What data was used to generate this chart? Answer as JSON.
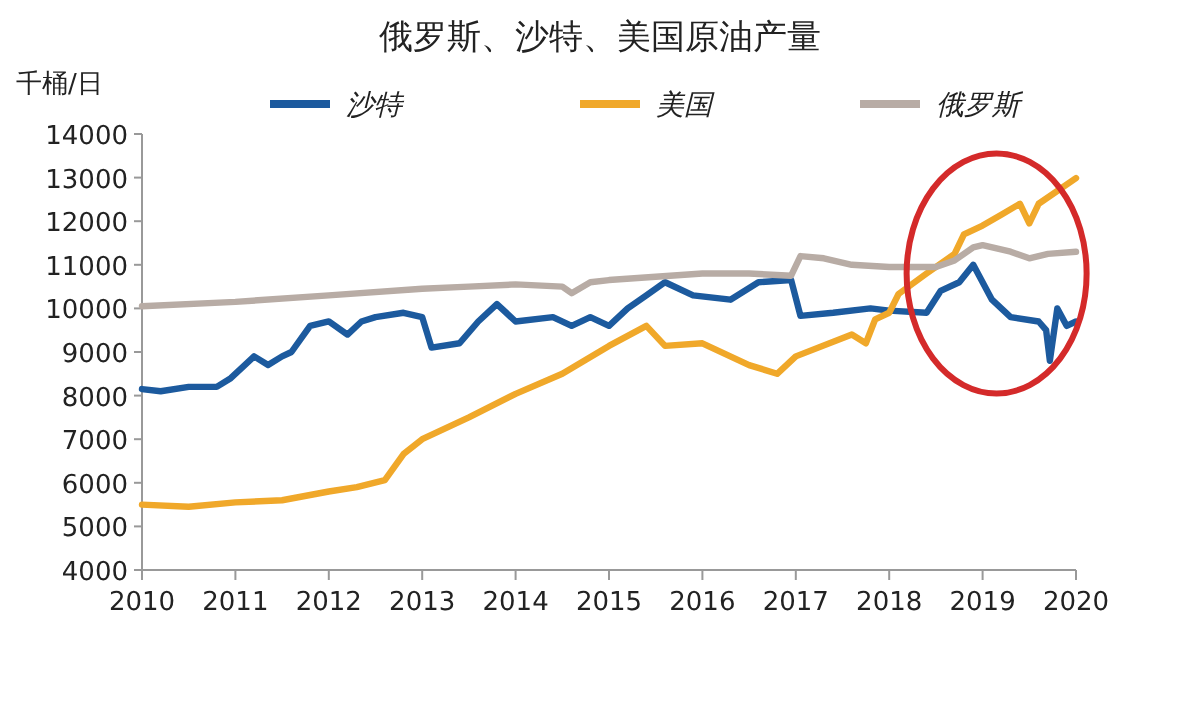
{
  "chart_data": {
    "type": "line",
    "title": "俄罗斯、沙特、美国原油产量",
    "ylabel": "千桶/日",
    "xlim": [
      2010,
      2020
    ],
    "xticks": [
      2010,
      2011,
      2012,
      2013,
      2014,
      2015,
      2016,
      2017,
      2018,
      2019,
      2020
    ],
    "ylim": [
      4000,
      14000
    ],
    "yticks": [
      4000,
      5000,
      6000,
      7000,
      8000,
      9000,
      10000,
      11000,
      12000,
      13000,
      14000
    ],
    "grid": false,
    "legend": "top",
    "line_style": "solid",
    "marker": "none",
    "series": [
      {
        "name": "沙特",
        "color": "#1c5a9e",
        "x": [
          2010,
          2010.2,
          2010.5,
          2010.8,
          2010.95,
          2011.1,
          2011.2,
          2011.35,
          2011.5,
          2011.6,
          2011.8,
          2012.0,
          2012.2,
          2012.35,
          2012.5,
          2012.8,
          2013.0,
          2013.1,
          2013.4,
          2013.6,
          2013.8,
          2014.0,
          2014.4,
          2014.6,
          2014.8,
          2015.0,
          2015.2,
          2015.4,
          2015.6,
          2015.9,
          2016.3,
          2016.6,
          2016.95,
          2017.05,
          2017.4,
          2017.8,
          2018.0,
          2018.4,
          2018.55,
          2018.75,
          2018.9,
          2019.1,
          2019.3,
          2019.6,
          2019.68,
          2019.72,
          2019.8,
          2019.9,
          2020
        ],
        "values": [
          8150,
          8100,
          8200,
          8200,
          8400,
          8700,
          8900,
          8700,
          8900,
          9000,
          9600,
          9700,
          9400,
          9700,
          9800,
          9900,
          9800,
          9100,
          9200,
          9700,
          10100,
          9700,
          9800,
          9600,
          9800,
          9600,
          10000,
          10300,
          10600,
          10300,
          10200,
          10600,
          10650,
          9830,
          9900,
          10000,
          9950,
          9900,
          10400,
          10600,
          11000,
          10200,
          9800,
          9700,
          9500,
          8800,
          10000,
          9600,
          9700
        ]
      },
      {
        "name": "美国",
        "color": "#f0a82a",
        "x": [
          2010,
          2010.5,
          2011,
          2011.5,
          2012,
          2012.3,
          2012.6,
          2012.8,
          2013,
          2013.5,
          2014,
          2014.5,
          2015,
          2015.4,
          2015.6,
          2016,
          2016.5,
          2016.8,
          2017,
          2017.6,
          2017.75,
          2017.85,
          2018,
          2018.1,
          2018.4,
          2018.7,
          2018.8,
          2019,
          2019.2,
          2019.4,
          2019.5,
          2019.6,
          2020
        ],
        "values": [
          5500,
          5450,
          5550,
          5600,
          5800,
          5900,
          6060,
          6660,
          7000,
          7500,
          8040,
          8500,
          9140,
          9600,
          9140,
          9200,
          8700,
          8500,
          8900,
          9400,
          9200,
          9750,
          9900,
          10330,
          10800,
          11250,
          11700,
          11900,
          12150,
          12400,
          11950,
          12400,
          12990
        ]
      },
      {
        "name": "俄罗斯",
        "color": "#b8aca5",
        "x": [
          2010,
          2011,
          2012,
          2013,
          2013.5,
          2014,
          2014.5,
          2014.6,
          2014.8,
          2015,
          2016,
          2016.5,
          2016.95,
          2017.05,
          2017.3,
          2017.6,
          2018,
          2018.5,
          2018.7,
          2018.9,
          2019.0,
          2019.3,
          2019.5,
          2019.7,
          2020
        ],
        "values": [
          10050,
          10150,
          10300,
          10450,
          10500,
          10550,
          10500,
          10350,
          10600,
          10650,
          10800,
          10800,
          10750,
          11200,
          11150,
          11000,
          10950,
          10950,
          11100,
          11400,
          11450,
          11300,
          11150,
          11250,
          11300
        ]
      }
    ]
  }
}
